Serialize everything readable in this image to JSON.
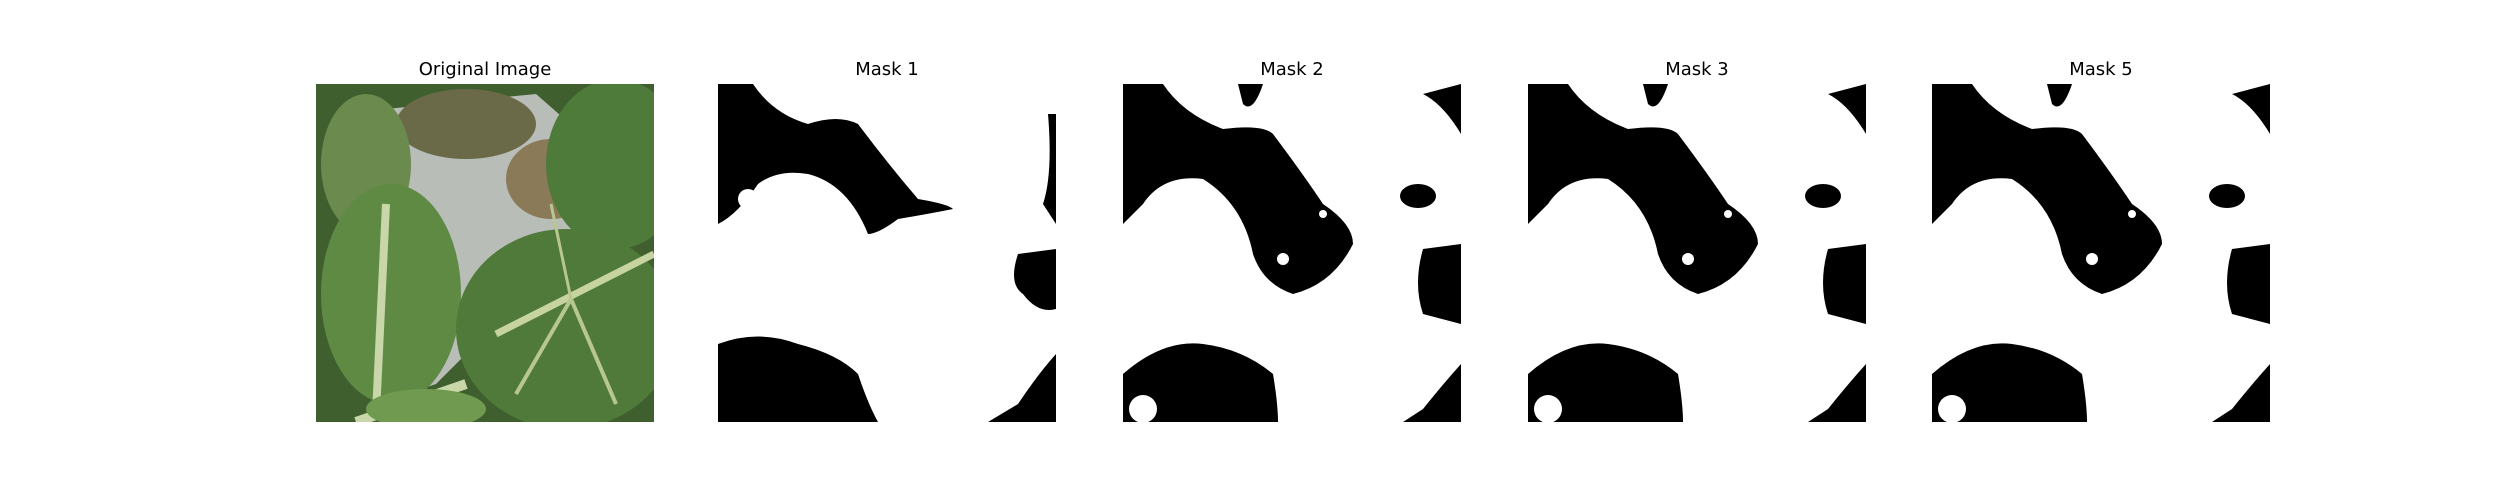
{
  "panels": [
    {
      "title": "Original Image",
      "kind": "photo"
    },
    {
      "title": "Mask 1",
      "kind": "mask"
    },
    {
      "title": "Mask 2",
      "kind": "mask"
    },
    {
      "title": "Mask 3",
      "kind": "mask"
    },
    {
      "title": "Mask 5",
      "kind": "mask"
    }
  ],
  "colors": {
    "mask_foreground": "#ffffff",
    "mask_background": "#000000",
    "leaf": "#4f7a3a",
    "background_surface": "#b9bdb8"
  }
}
